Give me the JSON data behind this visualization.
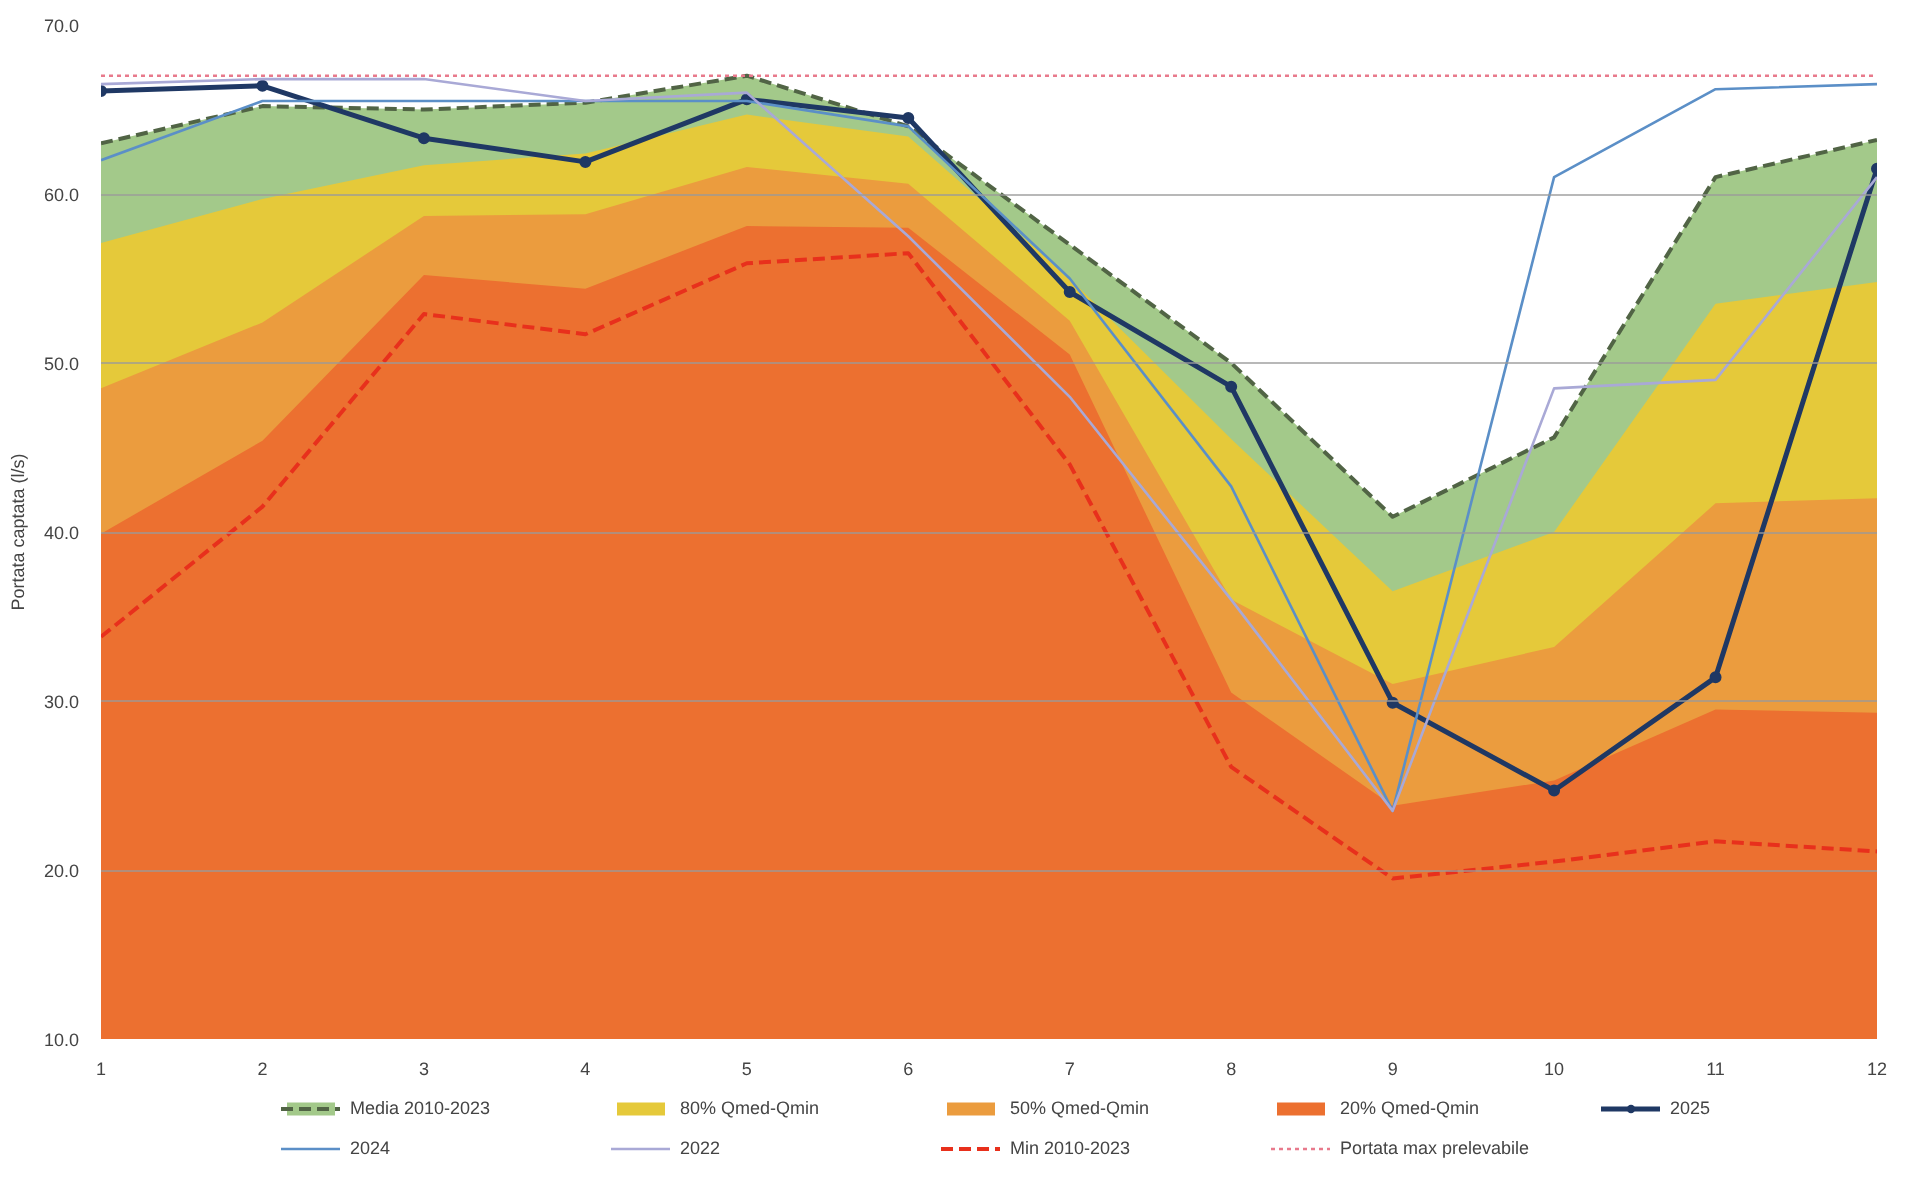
{
  "chart_data": {
    "type": "area",
    "ylabel": "Portata captata (l/s)",
    "categories": [
      "1",
      "2",
      "3",
      "4",
      "5",
      "6",
      "7",
      "8",
      "9",
      "10",
      "11",
      "12"
    ],
    "ylim": [
      10,
      70
    ],
    "yticks": [
      {
        "value": 10,
        "label": "10.0"
      },
      {
        "value": 20,
        "label": "20.0"
      },
      {
        "value": 30,
        "label": "30.0"
      },
      {
        "value": 40,
        "label": "40.0"
      },
      {
        "value": 50,
        "label": "50.0"
      },
      {
        "value": 60,
        "label": "60.0"
      },
      {
        "value": 70,
        "label": "70.0"
      }
    ],
    "grid": "y",
    "legend": "bottom",
    "series": [
      {
        "name": "Media 2010-2023",
        "line_style": "dashed",
        "color": "#a3c98a",
        "values": [
          63.0,
          65.2,
          65.0,
          65.4,
          67.0,
          64.0,
          57.0,
          50.0,
          40.9,
          45.6,
          61.0,
          63.2
        ]
      },
      {
        "name": "80% Qmed-Qmin",
        "color": "#e5c93a",
        "values": [
          57.1,
          59.7,
          61.7,
          62.4,
          64.7,
          63.4,
          55.0,
          45.5,
          36.5,
          40.0,
          53.5,
          54.8
        ]
      },
      {
        "name": "50% Qmed-Qmin",
        "color": "#eb9c3e",
        "values": [
          48.5,
          52.4,
          58.7,
          58.8,
          61.6,
          60.6,
          52.5,
          36.0,
          31.0,
          33.2,
          41.7,
          42.0
        ]
      },
      {
        "name": "20% Qmed-Qmin",
        "color": "#ec7030",
        "values": [
          39.9,
          45.4,
          55.2,
          54.4,
          58.1,
          58.0,
          50.5,
          30.5,
          23.8,
          25.3,
          29.5,
          29.3
        ]
      },
      {
        "name": "2025",
        "type": "line",
        "marker": "circle",
        "color": "#1f3864",
        "values": [
          66.1,
          66.4,
          63.3,
          61.9,
          65.6,
          64.5,
          54.2,
          48.6,
          29.9,
          24.7,
          31.4,
          61.5
        ]
      },
      {
        "name": "2024",
        "type": "line",
        "color": "#5b8fc7",
        "values": [
          62.0,
          65.5,
          65.5,
          65.5,
          65.5,
          64.0,
          55.0,
          42.7,
          23.5,
          61.0,
          66.2,
          66.5
        ]
      },
      {
        "name": "2022",
        "type": "line",
        "color": "#a9a9d6",
        "values": [
          66.5,
          66.8,
          66.8,
          65.5,
          66.0,
          57.5,
          48.0,
          36.0,
          23.5,
          48.5,
          49.0,
          61.0
        ]
      },
      {
        "name": "Min 2010-2023",
        "type": "line",
        "line_style": "dashed",
        "color": "#e8301c",
        "values": [
          33.8,
          41.5,
          52.9,
          51.7,
          55.9,
          56.5,
          44.0,
          26.1,
          19.5,
          20.5,
          21.7,
          21.1
        ]
      },
      {
        "name": "Portata max prelevabile",
        "type": "line",
        "line_style": "dotted",
        "color": "#e87a8c",
        "values": [
          67.0,
          67.0,
          67.0,
          67.0,
          67.0,
          67.0,
          67.0,
          67.0,
          67.0,
          67.0,
          67.0,
          67.0
        ]
      }
    ]
  }
}
